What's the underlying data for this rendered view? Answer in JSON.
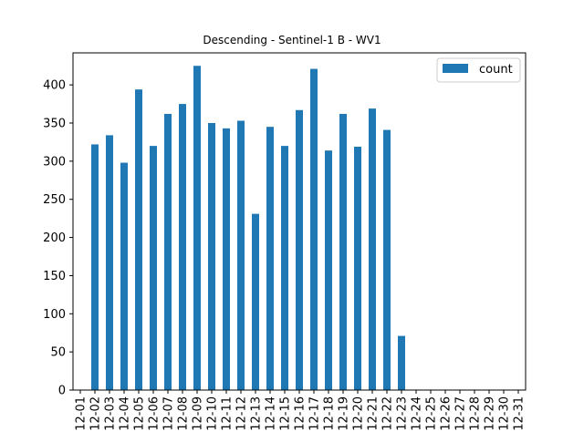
{
  "chart_data": {
    "type": "bar",
    "title": "Descending - Sentinel-1 B - WV1",
    "xlabel": "",
    "ylabel": "",
    "categories": [
      "12-01",
      "12-02",
      "12-03",
      "12-04",
      "12-05",
      "12-06",
      "12-07",
      "12-08",
      "12-09",
      "12-10",
      "12-11",
      "12-12",
      "12-13",
      "12-14",
      "12-15",
      "12-16",
      "12-17",
      "12-18",
      "12-19",
      "12-20",
      "12-21",
      "12-22",
      "12-23",
      "12-24",
      "12-25",
      "12-26",
      "12-27",
      "12-28",
      "12-29",
      "12-30",
      "12-31"
    ],
    "series": [
      {
        "name": "count",
        "color": "#1f77b4",
        "values": [
          0,
          322,
          334,
          298,
          394,
          320,
          362,
          375,
          425,
          350,
          343,
          353,
          231,
          345,
          320,
          367,
          421,
          314,
          362,
          319,
          369,
          341,
          71,
          0,
          0,
          0,
          0,
          0,
          0,
          0,
          0
        ]
      }
    ],
    "ylim": [
      0,
      442
    ],
    "yticks": [
      0,
      50,
      100,
      150,
      200,
      250,
      300,
      350,
      400
    ],
    "grid": false,
    "legend_position": "top-right"
  }
}
